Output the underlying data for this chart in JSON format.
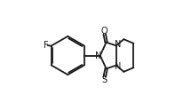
{
  "bg_color": "#ffffff",
  "line_color": "#1a1a1a",
  "line_width": 1.3,
  "font_size_label": 7.0,
  "figsize": [
    2.07,
    1.25
  ],
  "dpi": 100,
  "F_label": "F",
  "O_label": "O",
  "S_label": "S",
  "N1_label": "N",
  "N2_label": "N"
}
